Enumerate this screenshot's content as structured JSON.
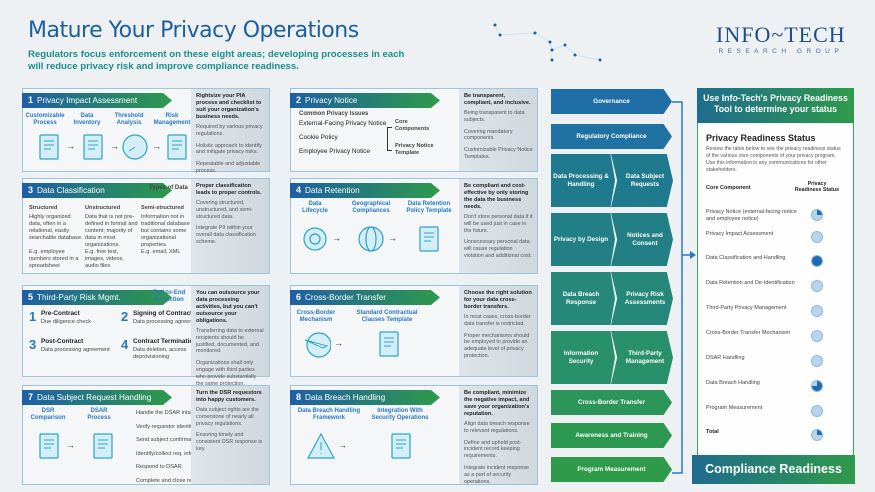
{
  "header": {
    "title": "Mature Your Privacy Operations",
    "subtitle": "Regulators focus enforcement on these eight areas; developing processes in each will reduce privacy risk and improve compliance readiness.",
    "logo": {
      "main": "Info~Tech",
      "sub": "Research Group"
    }
  },
  "colors": {
    "primary_blue": "#1d5f9e",
    "teal": "#1a8f8a",
    "green": "#2e9a4a",
    "accent_blue": "#2a78c2"
  },
  "cards": [
    {
      "num": "1",
      "title": "Privacy Impact Assessment",
      "steps": [
        "Customizable Process",
        "Data Inventory",
        "Threshold Analysis",
        "Risk Management"
      ],
      "icons": [
        "checklist-icon",
        "data-inventory-icon",
        "gauge-icon",
        "risk-buildings-icon"
      ],
      "side": {
        "lead": "Rightsize your PIA process and checklist to suit your organization's business needs.",
        "paras": [
          "Required by various privacy regulations.",
          "Holistic approach to identify and mitigate privacy risks.",
          "Repeatable and adjustable process."
        ]
      }
    },
    {
      "num": "2",
      "title": "Privacy Notice",
      "issues_label": "Common Privacy Issues",
      "issues": [
        "External-Facing Privacy Notice",
        "Cookie Policy",
        "Employee Privacy Notice"
      ],
      "components": [
        "Core Components",
        "Privacy Notice Template"
      ],
      "side": {
        "lead": "Be transparent, compliant, and inclusive.",
        "paras": [
          "Being transparent to data subjects.",
          "Covering mandatory components.",
          "Customizable Privacy Notice Templates."
        ]
      }
    },
    {
      "num": "3",
      "title": "Data Classification",
      "types_label": "Types of Data",
      "types": [
        {
          "name": "Structured",
          "desc": "Highly organized data, often in a relational, easily searchable database.",
          "example": "E.g. employee numbers stored in a spreadsheet"
        },
        {
          "name": "Unstructured",
          "desc": "Data that is not pre-defined in format and content; majority of data in most organizations.",
          "example": "E.g. free text, images, videos, audio files"
        },
        {
          "name": "Semi-structured",
          "desc": "Information not in traditional database but contains some organizational properties.",
          "example": "E.g. email, XML"
        }
      ],
      "side": {
        "lead": "Proper classification leads to proper controls.",
        "paras": [
          "Covering structured, unstructured, and semi-structured data.",
          "Integrate PII within your overall data classification scheme."
        ]
      }
    },
    {
      "num": "4",
      "title": "Data Retention",
      "steps": [
        "Data Lifecycle",
        "Geographical Compliances",
        "Data Retention Policy Template"
      ],
      "icons": [
        "lifecycle-icon",
        "globe-icon",
        "document-icon"
      ],
      "side": {
        "lead": "Be compliant and cost-effective by only storing the data the business needs.",
        "paras": [
          "Don't store personal data if it will be used just in case in the future.",
          "Unnecessary personal data will cause regulation violation and additional cost."
        ]
      }
    },
    {
      "num": "5",
      "title": "Third-Party Risk Mgmt.",
      "tag": "End-to-End Protection",
      "phases": [
        {
          "n": "1",
          "name": "Pre-Contract",
          "desc": "Due diligence check"
        },
        {
          "n": "2",
          "name": "Signing of Contract",
          "desc": "Data processing agreement"
        },
        {
          "n": "3",
          "name": "Post-Contract",
          "desc": "Data processing agreement"
        },
        {
          "n": "4",
          "name": "Contract Termination",
          "desc": "Data deletion, access deprovisioning"
        }
      ],
      "side": {
        "lead": "You can outsource your data processing activities, but you can't outsource your obligations.",
        "paras": [
          "Transferring data to external recipients should be justified, documented, and monitored.",
          "Organizations shall only engage with third parties who provide substantially the same protection."
        ]
      }
    },
    {
      "num": "6",
      "title": "Cross-Border Transfer",
      "steps": [
        "Cross-Border Mechanism",
        "Standard Contractual Clauses Template"
      ],
      "icons": [
        "plane-globe-icon",
        "document-icon"
      ],
      "side": {
        "lead": "Choose the right solution for your data cross-border transfers.",
        "paras": [
          "In most cases, cross-border data transfer is restricted.",
          "Proper mechanisms should be employed to provide an adequate level of privacy protection."
        ]
      }
    },
    {
      "num": "7",
      "title": "Data Subject Request Handling",
      "steps": [
        "DSR Comparison",
        "DSAR Process"
      ],
      "icons": [
        "comparison-icon",
        "process-checklist-icon"
      ],
      "process": [
        "Handle the DSAR intake.",
        "Verify requestor identity.",
        "Send subject confirmation req.",
        "Identify/collect req. information.",
        "Respond to DSAR.",
        "Complete and close request."
      ],
      "side": {
        "lead": "Turn the DSR requestors into happy customers.",
        "paras": [
          "Data subject rights are the cornerstone of nearly all privacy regulations.",
          "Ensuring timely and consistent DSR response is key."
        ]
      }
    },
    {
      "num": "8",
      "title": "Data Breach Handling",
      "steps": [
        "Data Breach Handling Framework",
        "Integration With Security Operations"
      ],
      "icons": [
        "warning-icon",
        "server-icon"
      ],
      "side": {
        "lead": "Be compliant, minimize the negative impact, and save your organization's reputation.",
        "paras": [
          "Align data breach response to relevant regulations.",
          "Define and uphold post-incident record keeping requirements.",
          "Integrate incident response as a part of security operations."
        ]
      }
    }
  ],
  "areas": {
    "singles_top": [
      "Governance",
      "Regulatory Compliance"
    ],
    "pairs": [
      [
        "Data Processing & Handling",
        "Data Subject Requests"
      ],
      [
        "Privacy by Design",
        "Notices and Consent"
      ],
      [
        "Data Breach Response",
        "Privacy Risk Assessments"
      ],
      [
        "Information Security",
        "Third-Party Management"
      ]
    ],
    "singles_bottom": [
      "Cross-Border Transfer",
      "Awareness and Training",
      "Program Measurement"
    ]
  },
  "readiness": {
    "banner": "Use Info-Tech's Privacy Readiness Tool to determine your status",
    "title": "Privacy Readiness Status",
    "intro": "Review the table below to see the privacy readiness status of the various core components of your privacy program. Use this information in any communications for other stakeholders.",
    "col_component": "Core Component",
    "col_status": "Privacy Readiness Status",
    "rows": [
      {
        "name": "Privacy Notice (external-facing notice and employee notice)",
        "fill": 0.25
      },
      {
        "name": "Privacy Impact Assessment",
        "fill": 0
      },
      {
        "name": "Data Classification and Handling",
        "fill": 1
      },
      {
        "name": "Data Retention and De-Identification",
        "fill": 0
      },
      {
        "name": "Third-Party Privacy Management",
        "fill": 0
      },
      {
        "name": "Cross-Border Transfer Mechanism",
        "fill": 0
      },
      {
        "name": "DSAR Handling",
        "fill": 0
      },
      {
        "name": "Data Breach Handling",
        "fill": 0.75
      },
      {
        "name": "Program Measurement",
        "fill": 0
      },
      {
        "name": "Total",
        "fill": 0.25
      }
    ],
    "footer": "Compliance Readiness"
  }
}
